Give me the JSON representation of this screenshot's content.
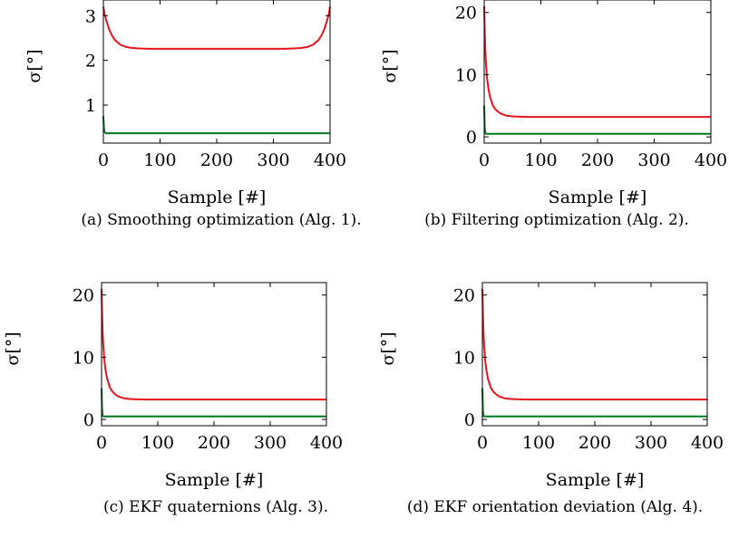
{
  "chart_data": [
    {
      "type": "line",
      "caption": "(a) Smoothing optimization (Alg. 1).",
      "xlabel": "Sample [#]",
      "ylabel": "σ[°]",
      "xlim": [
        0,
        400
      ],
      "ylim": [
        0.15,
        3.35
      ],
      "xticks": [
        "0",
        "100",
        "200",
        "300",
        "400"
      ],
      "yticks": [
        {
          "v": 1,
          "label": "1"
        },
        {
          "v": 2,
          "label": "2"
        },
        {
          "v": 3,
          "label": "3"
        }
      ],
      "grid": false,
      "series": [
        {
          "color": "#e8141b",
          "x": [
            0,
            2,
            5,
            10,
            15,
            20,
            30,
            40,
            50,
            60,
            80,
            100,
            150,
            200,
            250,
            300,
            320,
            340,
            350,
            360,
            370,
            380,
            385,
            390,
            395,
            398,
            400
          ],
          "y": [
            3.2,
            3.05,
            2.9,
            2.7,
            2.56,
            2.46,
            2.35,
            2.3,
            2.28,
            2.27,
            2.26,
            2.26,
            2.26,
            2.26,
            2.26,
            2.26,
            2.26,
            2.27,
            2.28,
            2.3,
            2.35,
            2.46,
            2.56,
            2.7,
            2.9,
            3.05,
            3.2
          ]
        },
        {
          "color": "#007a1e",
          "x": [
            0,
            1,
            2,
            4,
            400
          ],
          "y": [
            0.75,
            0.5,
            0.4,
            0.37,
            0.37
          ]
        }
      ]
    },
    {
      "type": "line",
      "caption": "(b) Filtering optimization (Alg. 2).",
      "xlabel": "Sample [#]",
      "ylabel": "σ[°]",
      "xlim": [
        0,
        400
      ],
      "ylim": [
        -1,
        22
      ],
      "xticks": [
        "0",
        "100",
        "200",
        "300",
        "400"
      ],
      "yticks": [
        {
          "v": 0,
          "label": "0"
        },
        {
          "v": 10,
          "label": "10"
        },
        {
          "v": 20,
          "label": "20"
        }
      ],
      "grid": false,
      "series": [
        {
          "color": "#e8141b",
          "x": [
            0,
            1,
            2,
            3,
            5,
            7,
            10,
            15,
            20,
            25,
            30,
            40,
            50,
            60,
            80,
            100,
            150,
            200,
            300,
            400
          ],
          "y": [
            21,
            17,
            14,
            12,
            9.5,
            8,
            6.5,
            5.1,
            4.4,
            4,
            3.7,
            3.4,
            3.3,
            3.25,
            3.2,
            3.2,
            3.2,
            3.2,
            3.2,
            3.2
          ]
        },
        {
          "color": "#007a1e",
          "x": [
            0,
            1,
            2,
            3,
            400
          ],
          "y": [
            5,
            1.5,
            0.6,
            0.5,
            0.5
          ]
        }
      ]
    },
    {
      "type": "line",
      "caption": "(c) EKF quaternions (Alg. 3).",
      "xlabel": "Sample [#]",
      "ylabel": "σ[°]",
      "xlim": [
        0,
        400
      ],
      "ylim": [
        -1,
        22
      ],
      "xticks": [
        "0",
        "100",
        "200",
        "300",
        "400"
      ],
      "yticks": [
        {
          "v": 0,
          "label": "0"
        },
        {
          "v": 10,
          "label": "10"
        },
        {
          "v": 20,
          "label": "20"
        }
      ],
      "grid": false,
      "series": [
        {
          "color": "#e8141b",
          "x": [
            0,
            1,
            2,
            3,
            5,
            7,
            10,
            15,
            20,
            25,
            30,
            40,
            50,
            60,
            80,
            100,
            150,
            200,
            300,
            400
          ],
          "y": [
            21,
            17,
            14,
            12,
            9.5,
            8,
            6.5,
            5.1,
            4.4,
            4,
            3.7,
            3.4,
            3.3,
            3.25,
            3.2,
            3.2,
            3.2,
            3.2,
            3.2,
            3.2
          ]
        },
        {
          "color": "#007a1e",
          "x": [
            0,
            1,
            2,
            3,
            400
          ],
          "y": [
            5,
            1.5,
            0.6,
            0.5,
            0.5
          ]
        }
      ]
    },
    {
      "type": "line",
      "caption": "(d) EKF orientation deviation (Alg. 4).",
      "xlabel": "Sample [#]",
      "ylabel": "σ[°]",
      "xlim": [
        0,
        400
      ],
      "ylim": [
        -1,
        22
      ],
      "xticks": [
        "0",
        "100",
        "200",
        "300",
        "400"
      ],
      "yticks": [
        {
          "v": 0,
          "label": "0"
        },
        {
          "v": 10,
          "label": "10"
        },
        {
          "v": 20,
          "label": "20"
        }
      ],
      "grid": false,
      "series": [
        {
          "color": "#e8141b",
          "x": [
            0,
            1,
            2,
            3,
            5,
            7,
            10,
            15,
            20,
            25,
            30,
            40,
            50,
            60,
            80,
            100,
            150,
            200,
            300,
            400
          ],
          "y": [
            21,
            17,
            14,
            12,
            9.5,
            8,
            6.5,
            5.1,
            4.4,
            4,
            3.7,
            3.4,
            3.3,
            3.25,
            3.2,
            3.2,
            3.2,
            3.2,
            3.2,
            3.2
          ]
        },
        {
          "color": "#007a1e",
          "x": [
            0,
            1,
            2,
            3,
            400
          ],
          "y": [
            5,
            1.5,
            0.6,
            0.5,
            0.5
          ]
        }
      ]
    }
  ]
}
